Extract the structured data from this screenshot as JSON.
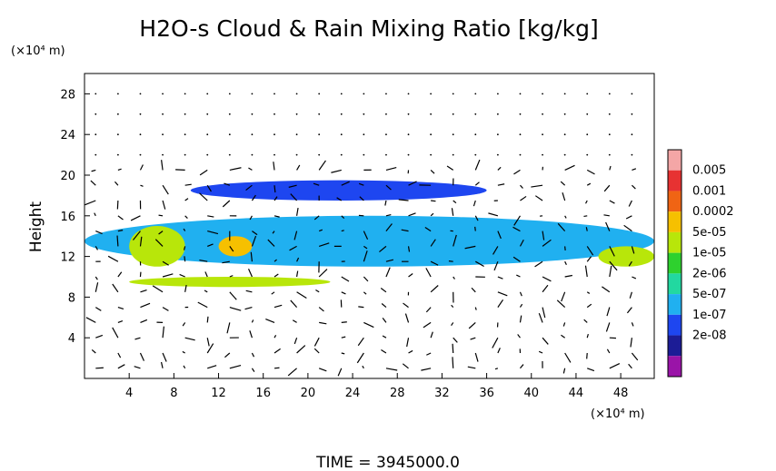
{
  "chart_data": {
    "type": "heatmap",
    "title": "H2O-s Cloud & Rain Mixing Ratio [kg/kg]",
    "ylabel": "Height",
    "y_unit_label": "(×10⁴ m)",
    "x_unit_label": "(×10⁴ m)",
    "xlim": [
      0,
      51
    ],
    "ylim": [
      0,
      30
    ],
    "xticks": [
      4,
      8,
      12,
      16,
      20,
      24,
      28,
      32,
      36,
      40,
      44,
      48
    ],
    "yticks": [
      4,
      8,
      12,
      16,
      20,
      24,
      28
    ],
    "footer": "TIME = 3945000.0",
    "colorbar": {
      "levels": [
        "0.005",
        "0.001",
        "0.0002",
        "5e-05",
        "1e-05",
        "2e-06",
        "5e-07",
        "1e-07",
        "2e-08"
      ],
      "colors": [
        "#f4a6a6",
        "#e73232",
        "#f06414",
        "#f6c000",
        "#b8e60a",
        "#2ed12e",
        "#22d8a0",
        "#20b0f0",
        "#1e46f0",
        "#1c1c96",
        "#9a14a8"
      ]
    },
    "regions": [
      {
        "name": "upper-cloud-sheet",
        "level": "1e-07",
        "x": [
          9.5,
          36
        ],
        "y": [
          17.5,
          19.5
        ]
      },
      {
        "name": "main-cloud-band",
        "level": "5e-07",
        "x": [
          0,
          51
        ],
        "y": [
          11,
          16
        ]
      },
      {
        "name": "core-west",
        "level": "5e-05",
        "x": [
          4,
          9
        ],
        "y": [
          11,
          15
        ]
      },
      {
        "name": "core-central",
        "level": "0.0002",
        "x": [
          12,
          15
        ],
        "y": [
          12,
          14
        ]
      },
      {
        "name": "core-east",
        "level": "5e-05",
        "x": [
          46,
          51
        ],
        "y": [
          11,
          13
        ]
      },
      {
        "name": "lower-patches",
        "level": "5e-05",
        "x": [
          4,
          22
        ],
        "y": [
          9,
          10
        ]
      }
    ],
    "vectors": "wind field arrows over the domain"
  }
}
